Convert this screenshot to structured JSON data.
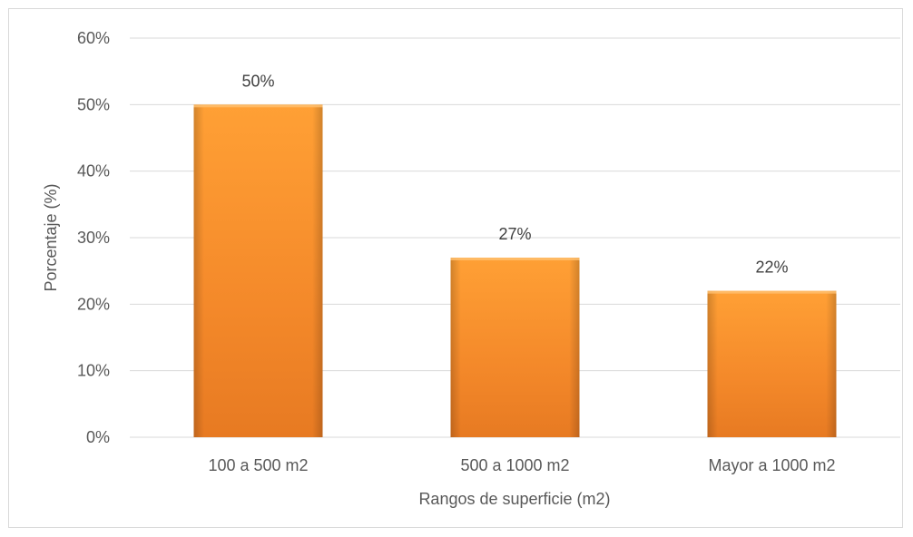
{
  "colors": {
    "bar_light": "#FFA035",
    "bar_mid": "#F4892A",
    "bar_dark": "#D2691E",
    "grid": "#D9D9D9",
    "text": "#595959"
  },
  "chart_data": {
    "type": "bar",
    "categories": [
      "100 a 500 m2",
      "500 a 1000 m2",
      "Mayor a 1000 m2"
    ],
    "values": [
      50,
      27,
      22
    ],
    "data_labels": [
      "50%",
      "27%",
      "22%"
    ],
    "xlabel": "Rangos de superficie (m2)",
    "ylabel": "Porcentaje (%)",
    "ylim": [
      0,
      60
    ],
    "yticks": [
      0,
      10,
      20,
      30,
      40,
      50,
      60
    ],
    "ytick_labels": [
      "0%",
      "10%",
      "20%",
      "30%",
      "40%",
      "50%",
      "60%"
    ],
    "grid": true,
    "legend": "none"
  }
}
